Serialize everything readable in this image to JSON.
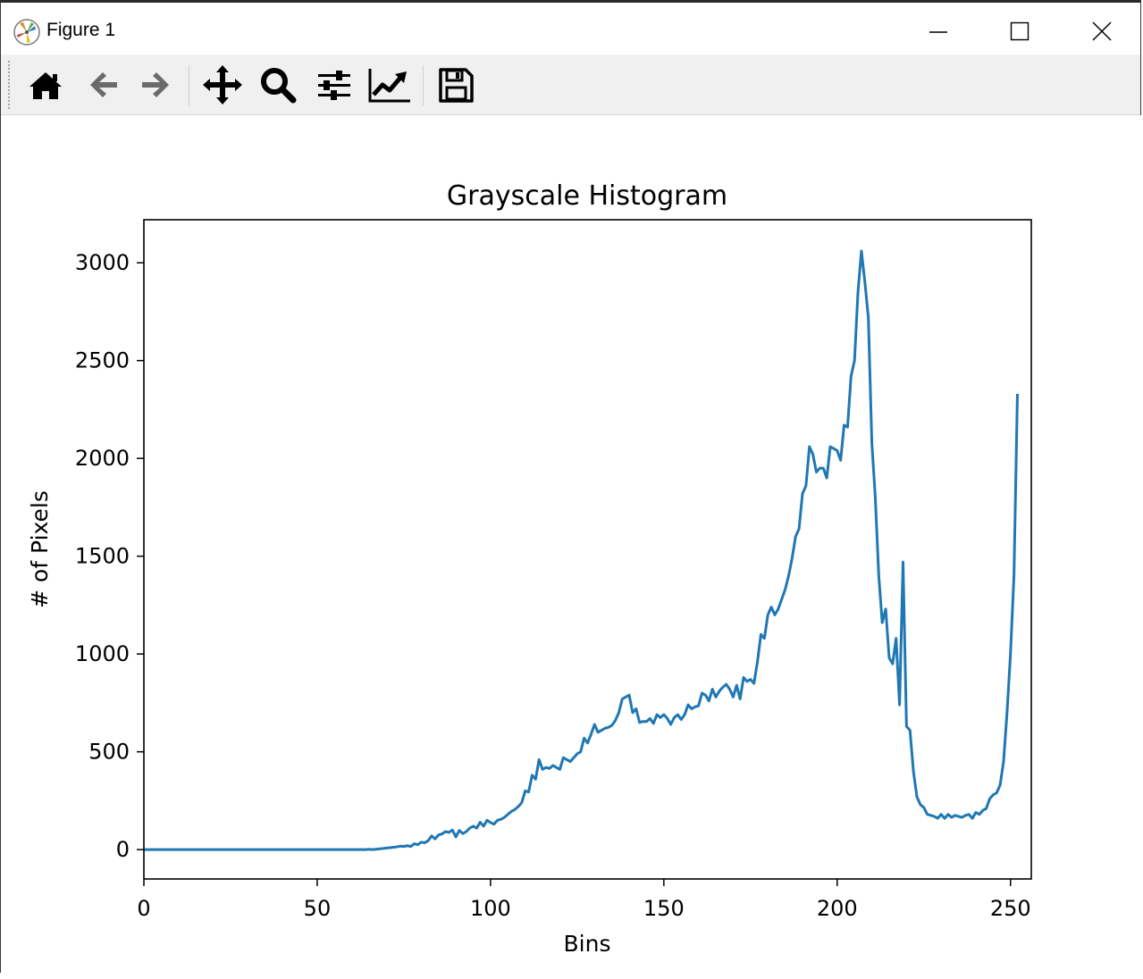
{
  "window": {
    "title": "Figure 1",
    "controls": {
      "minimize": "minimize",
      "maximize": "maximize",
      "close": "close"
    }
  },
  "toolbar": {
    "buttons": [
      {
        "name": "home",
        "icon": "home-icon"
      },
      {
        "name": "back",
        "icon": "arrow-left-icon"
      },
      {
        "name": "forward",
        "icon": "arrow-right-icon"
      },
      {
        "name": "pan",
        "icon": "move-icon"
      },
      {
        "name": "zoom",
        "icon": "magnifier-icon"
      },
      {
        "name": "configure-subplots",
        "icon": "sliders-icon"
      },
      {
        "name": "edit-axis",
        "icon": "line-chart-icon"
      },
      {
        "name": "save",
        "icon": "floppy-disk-icon"
      }
    ]
  },
  "chart_data": {
    "type": "line",
    "title": "Grayscale Histogram",
    "xlabel": "Bins",
    "ylabel": "# of Pixels",
    "xlim": [
      0,
      256
    ],
    "ylim": [
      -150,
      3220
    ],
    "xticks": [
      0,
      50,
      100,
      150,
      200,
      250
    ],
    "yticks": [
      0,
      500,
      1000,
      1500,
      2000,
      2500,
      3000
    ],
    "xtick_labels": [
      "0",
      "50",
      "100",
      "150",
      "200",
      "250"
    ],
    "ytick_labels": [
      "0",
      "500",
      "1000",
      "1500",
      "2000",
      "2500",
      "3000"
    ],
    "grid": false,
    "line_color": "#1f77b4",
    "series": [
      {
        "values": [
          0,
          0,
          0,
          0,
          0,
          0,
          0,
          0,
          0,
          0,
          0,
          0,
          0,
          0,
          0,
          0,
          0,
          0,
          0,
          0,
          0,
          0,
          0,
          0,
          0,
          0,
          0,
          0,
          0,
          0,
          0,
          0,
          0,
          0,
          0,
          0,
          0,
          0,
          0,
          0,
          0,
          0,
          0,
          0,
          0,
          0,
          0,
          0,
          0,
          0,
          0,
          0,
          0,
          0,
          0,
          0,
          0,
          0,
          0,
          0,
          0,
          0,
          0,
          0,
          0,
          2,
          0,
          2,
          4,
          6,
          8,
          10,
          12,
          14,
          18,
          16,
          20,
          16,
          30,
          25,
          38,
          35,
          45,
          70,
          55,
          75,
          80,
          92,
          88,
          100,
          65,
          98,
          82,
          92,
          110,
          120,
          110,
          140,
          120,
          150,
          138,
          130,
          150,
          155,
          165,
          180,
          195,
          205,
          220,
          240,
          300,
          295,
          380,
          360,
          460,
          410,
          420,
          415,
          430,
          420,
          410,
          470,
          460,
          450,
          470,
          490,
          500,
          570,
          545,
          590,
          640,
          600,
          610,
          620,
          625,
          635,
          660,
          700,
          770,
          780,
          790,
          700,
          720,
          650,
          655,
          655,
          670,
          645,
          690,
          675,
          690,
          670,
          640,
          675,
          690,
          665,
          690,
          740,
          720,
          730,
          735,
          800,
          790,
          760,
          820,
          780,
          810,
          830,
          845,
          820,
          780,
          840,
          770,
          880,
          860,
          870,
          850,
          960,
          1100,
          1080,
          1200,
          1240,
          1200,
          1230,
          1280,
          1330,
          1400,
          1490,
          1600,
          1640,
          1820,
          1860,
          2060,
          2020,
          1930,
          1950,
          1950,
          1900,
          2060,
          2050,
          2040,
          1990,
          2170,
          2160,
          2420,
          2500,
          2850,
          3060,
          2900,
          2720,
          2080,
          1800,
          1400,
          1160,
          1230,
          980,
          950,
          1080,
          740,
          1470,
          630,
          610,
          400,
          270,
          230,
          215,
          180,
          175,
          170,
          160,
          180,
          160,
          180,
          165,
          175,
          170,
          165,
          175,
          180,
          160,
          190,
          180,
          200,
          210,
          260,
          280,
          290,
          330,
          450,
          700,
          1000,
          1400,
          2330
        ]
      }
    ]
  }
}
